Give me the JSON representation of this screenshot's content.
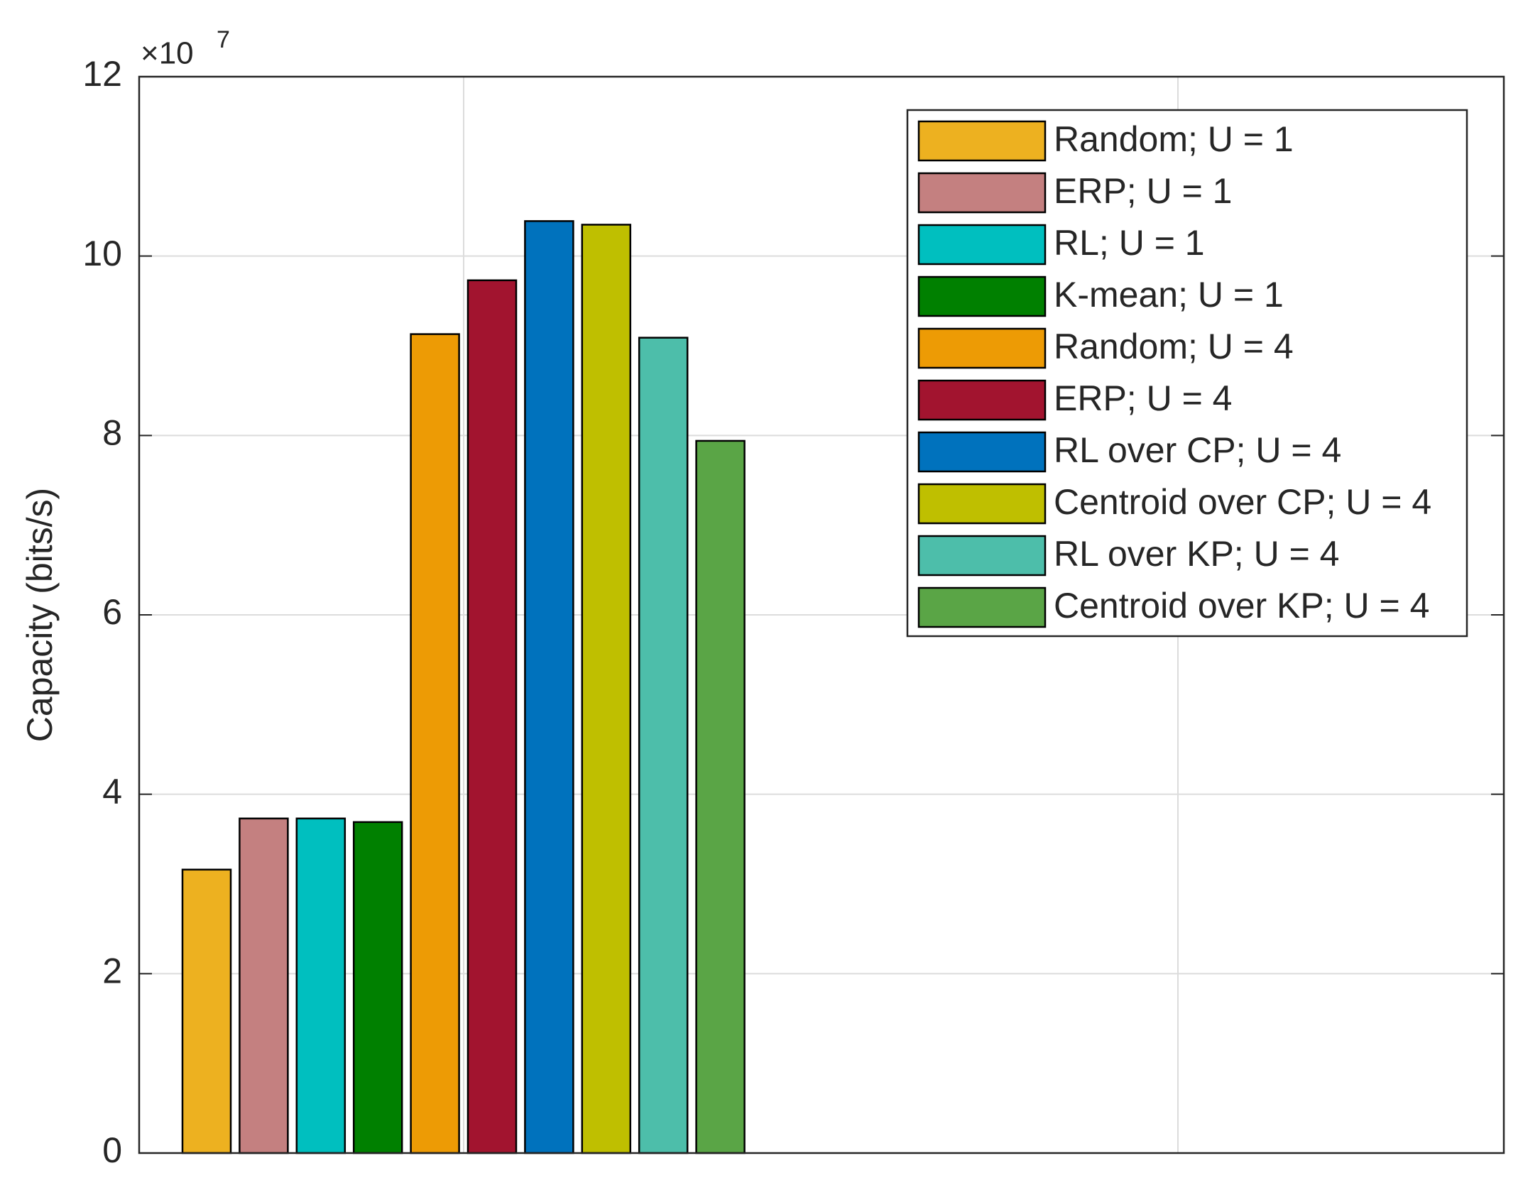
{
  "chart_data": {
    "type": "bar",
    "y_label": "Capacity (bits/s)",
    "y_multiplier_base": "×10",
    "y_multiplier_exponent": "7",
    "categories": [
      null
    ],
    "ylim": [
      0,
      12
    ],
    "yticks": [
      0,
      2,
      4,
      6,
      8,
      10,
      12
    ],
    "grid": true,
    "legend": "upper right",
    "series": [
      {
        "name": "Random; U = 1",
        "color": "#EDB120",
        "values": [
          3.16
        ]
      },
      {
        "name": "ERP; U = 1",
        "color": "#C48080",
        "values": [
          3.73
        ]
      },
      {
        "name": "RL; U = 1",
        "color": "#00BFBF",
        "values": [
          3.73
        ]
      },
      {
        "name": "K-mean; U = 1",
        "color": "#008000",
        "values": [
          3.69
        ]
      },
      {
        "name": "Random; U = 4",
        "color": "#ED9B05",
        "values": [
          9.13
        ]
      },
      {
        "name": "ERP; U = 4",
        "color": "#A2142F",
        "values": [
          9.73
        ]
      },
      {
        "name": "RL over CP; U = 4",
        "color": "#0072BD",
        "values": [
          10.39
        ]
      },
      {
        "name": "Centroid over CP; U = 4",
        "color": "#BFBF00",
        "values": [
          10.35
        ]
      },
      {
        "name": "RL over KP; U = 4",
        "color": "#4DBEAA",
        "values": [
          9.09
        ]
      },
      {
        "name": "Centroid over KP; U = 4",
        "color": "#5AA546",
        "values": [
          7.94
        ]
      }
    ]
  }
}
